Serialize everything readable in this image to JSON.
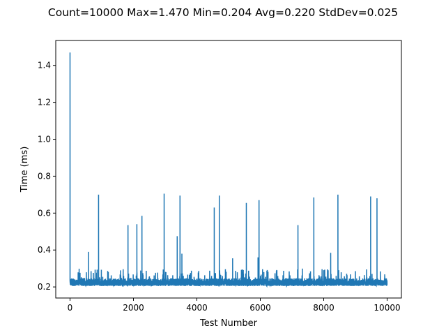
{
  "chart_data": {
    "type": "line",
    "title": "Count=10000 Max=1.470 Min=0.204 Avg=0.220 StdDev=0.025",
    "xlabel": "Test Number",
    "ylabel": "Time (ms)",
    "xlim": [
      -450,
      10450
    ],
    "ylim": [
      0.14,
      1.535
    ],
    "xticks": [
      0,
      2000,
      4000,
      6000,
      8000,
      10000
    ],
    "xtick_labels": [
      "0",
      "2000",
      "4000",
      "6000",
      "8000",
      "10000"
    ],
    "yticks": [
      0.2,
      0.4,
      0.6,
      0.8,
      1.0,
      1.2,
      1.4
    ],
    "ytick_labels": [
      "0.2",
      "0.4",
      "0.6",
      "0.8",
      "1.0",
      "1.2",
      "1.4"
    ],
    "grid": false,
    "series": [
      {
        "name": "time",
        "color": "#1f77b4",
        "count": 10000,
        "baseline_range": [
          0.205,
          0.265
        ],
        "spikes": [
          {
            "x": 0,
            "y": 1.47
          },
          {
            "x": 580,
            "y": 0.39
          },
          {
            "x": 900,
            "y": 0.7
          },
          {
            "x": 1830,
            "y": 0.535
          },
          {
            "x": 2110,
            "y": 0.54
          },
          {
            "x": 2270,
            "y": 0.585
          },
          {
            "x": 2970,
            "y": 0.705
          },
          {
            "x": 3380,
            "y": 0.475
          },
          {
            "x": 3470,
            "y": 0.695
          },
          {
            "x": 3530,
            "y": 0.38
          },
          {
            "x": 4550,
            "y": 0.63
          },
          {
            "x": 4710,
            "y": 0.695
          },
          {
            "x": 5130,
            "y": 0.355
          },
          {
            "x": 5560,
            "y": 0.655
          },
          {
            "x": 5930,
            "y": 0.36
          },
          {
            "x": 5960,
            "y": 0.67
          },
          {
            "x": 7190,
            "y": 0.535
          },
          {
            "x": 7690,
            "y": 0.685
          },
          {
            "x": 8220,
            "y": 0.385
          },
          {
            "x": 8450,
            "y": 0.7
          },
          {
            "x": 9480,
            "y": 0.69
          },
          {
            "x": 9680,
            "y": 0.68
          }
        ]
      }
    ]
  }
}
